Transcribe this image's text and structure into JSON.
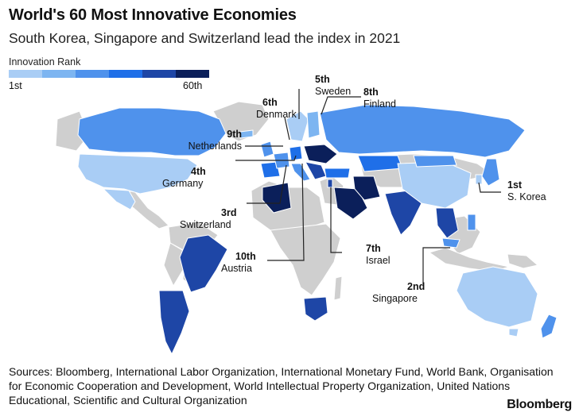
{
  "title": "World's 60 Most Innovative Economies",
  "subtitle": "South Korea, Singapore and Switzerland lead the index in 2021",
  "legend": {
    "title": "Innovation Rank",
    "low": "1st",
    "high": "60th",
    "colors": [
      "#a9cdf5",
      "#7db5f1",
      "#4f92ec",
      "#1f6fe8",
      "#1e46a6",
      "#0b1f5a"
    ]
  },
  "map_colors": {
    "land_not_ranked": "#cfcfcf",
    "ocean": "#ffffff",
    "border": "#ffffff",
    "leader_line": "#222222"
  },
  "countries": [
    {
      "name": "S. Korea",
      "rank": "1st",
      "rank_value": 1
    },
    {
      "name": "Singapore",
      "rank": "2nd",
      "rank_value": 2
    },
    {
      "name": "Switzerland",
      "rank": "3rd",
      "rank_value": 3
    },
    {
      "name": "Germany",
      "rank": "4th",
      "rank_value": 4
    },
    {
      "name": "Sweden",
      "rank": "5th",
      "rank_value": 5
    },
    {
      "name": "Denmark",
      "rank": "6th",
      "rank_value": 6
    },
    {
      "name": "Israel",
      "rank": "7th",
      "rank_value": 7
    },
    {
      "name": "Finland",
      "rank": "8th",
      "rank_value": 8
    },
    {
      "name": "Netherlands",
      "rank": "9th",
      "rank_value": 9
    },
    {
      "name": "Austria",
      "rank": "10th",
      "rank_value": 10
    }
  ],
  "sources": "Sources: Bloomberg, International Labor Organization, International Monetary Fund, World Bank, Organisation for Economic Cooperation and Development, World Intellectual Property Organization, United Nations Educational, Scientific and Cultural Organization",
  "brand": "Bloomberg"
}
